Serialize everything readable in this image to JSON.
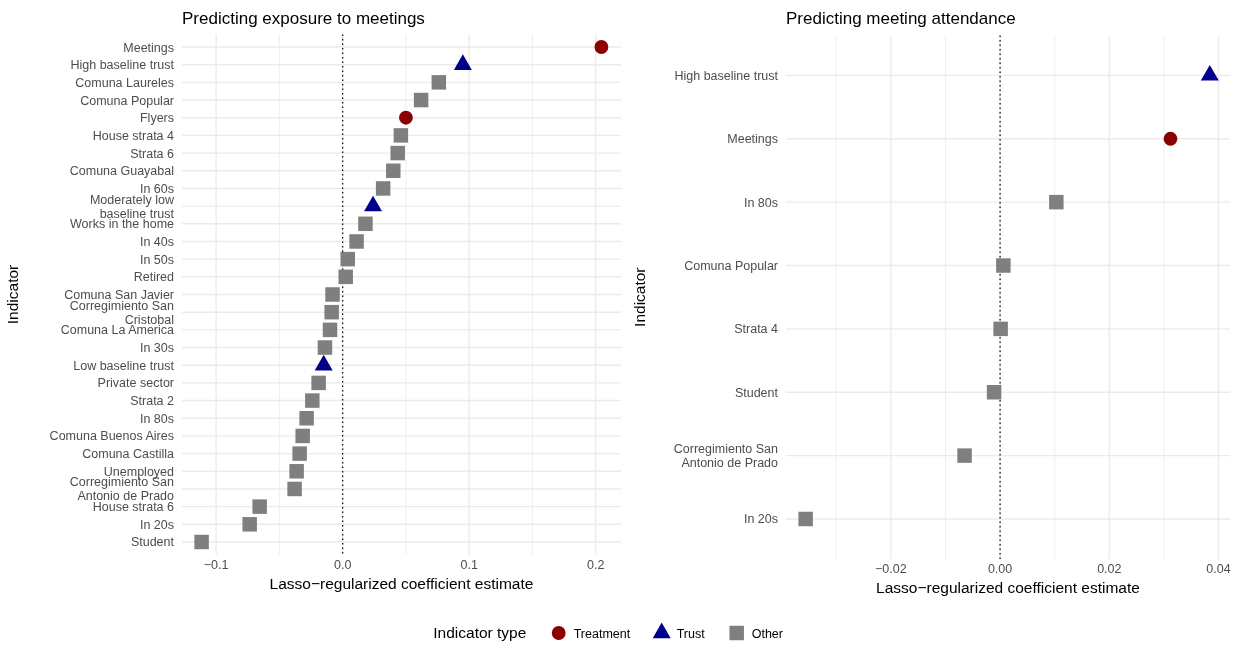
{
  "chart_data": [
    {
      "type": "scatter",
      "title": "Predicting exposure to meetings",
      "xlabel": "Lasso−regularized coefficient estimate",
      "ylabel": "Indicator",
      "orientation": "horizontal",
      "legend": "bottom",
      "legend_title": "Indicator type",
      "grid": true,
      "categories": [
        "Meetings",
        "High baseline trust",
        "Comuna Laureles",
        "Comuna Popular",
        "Flyers",
        "House strata 4",
        "Strata 6",
        "Comuna Guayabal",
        "In 60s",
        "Moderately low baseline trust",
        "Works in the home",
        "In 40s",
        "In 50s",
        "Retired",
        "Comuna San Javier",
        "Corregimiento San Cristobal",
        "Comuna La America",
        "In 30s",
        "Low baseline trust",
        "Private sector",
        "Strata 2",
        "In 80s",
        "Comuna Buenos Aires",
        "Comuna Castilla",
        "Unemployed",
        "Corregimiento San Antonio de Prado",
        "House strata 6",
        "In 20s",
        "Student"
      ],
      "xlim": [
        -0.127,
        0.22
      ],
      "xticks": [
        {
          "value": -0.1,
          "label": "−0.1"
        },
        {
          "value": -0.05,
          "label": null
        },
        {
          "value": 0,
          "label": "0.0"
        },
        {
          "value": 0.05,
          "label": null
        },
        {
          "value": 0.1,
          "label": "0.1"
        },
        {
          "value": 0.15,
          "label": null
        },
        {
          "value": 0.2,
          "label": "0.2"
        }
      ],
      "ref_lines": [
        {
          "axis": "x",
          "value": 0,
          "line_style": "dotted",
          "color": "#000000"
        }
      ],
      "series": [
        {
          "name": "Treatment",
          "color": "#8b0000",
          "marker": "circle",
          "values": [
            0.2045,
            null,
            null,
            null,
            0.05,
            null,
            null,
            null,
            null,
            null,
            null,
            null,
            null,
            null,
            null,
            null,
            null,
            null,
            null,
            null,
            null,
            null,
            null,
            null,
            null,
            null,
            null,
            null,
            null
          ]
        },
        {
          "name": "Trust",
          "color": "#00008b",
          "marker": "triangle",
          "values": [
            null,
            0.095,
            null,
            null,
            null,
            null,
            null,
            null,
            null,
            0.024,
            null,
            null,
            null,
            null,
            null,
            null,
            null,
            null,
            -0.015,
            null,
            null,
            null,
            null,
            null,
            null,
            null,
            null,
            null,
            null
          ]
        },
        {
          "name": "Other",
          "color": "#7f7f7f",
          "marker": "square",
          "values": [
            null,
            null,
            0.076,
            0.062,
            null,
            0.046,
            0.0435,
            0.04,
            0.032,
            null,
            0.018,
            0.011,
            0.004,
            0.0024,
            -0.008,
            -0.0087,
            -0.01,
            -0.014,
            null,
            -0.019,
            -0.024,
            -0.0285,
            -0.0316,
            -0.034,
            -0.0364,
            -0.038,
            -0.0656,
            -0.0735,
            -0.1115
          ]
        }
      ]
    },
    {
      "type": "scatter",
      "title": "Predicting meeting attendance",
      "xlabel": "Lasso−regularized coefficient estimate",
      "ylabel": "Indicator",
      "orientation": "horizontal",
      "grid": true,
      "categories": [
        "High baseline trust",
        "Meetings",
        "In 80s",
        "Comuna Popular",
        "Strata 4",
        "Student",
        "Corregimiento San Antonio de Prado",
        "In 20s"
      ],
      "xlim": [
        -0.0392,
        0.0421
      ],
      "xticks": [
        {
          "value": -0.03,
          "label": null
        },
        {
          "value": -0.02,
          "label": "−0.02"
        },
        {
          "value": -0.01,
          "label": null
        },
        {
          "value": 0,
          "label": "0.00"
        },
        {
          "value": 0.01,
          "label": null
        },
        {
          "value": 0.02,
          "label": "0.02"
        },
        {
          "value": 0.03,
          "label": null
        },
        {
          "value": 0.04,
          "label": "0.04"
        }
      ],
      "ref_lines": [
        {
          "axis": "x",
          "value": 0,
          "line_style": "dotted",
          "color": "#000000"
        }
      ],
      "series": [
        {
          "color": "#8b0000",
          "marker": "circle",
          "values": [
            null,
            0.0312,
            null,
            null,
            null,
            null,
            null,
            null
          ]
        },
        {
          "color": "#00008b",
          "marker": "triangle",
          "values": [
            0.0384,
            null,
            null,
            null,
            null,
            null,
            null,
            null
          ]
        },
        {
          "color": "#7f7f7f",
          "marker": "square",
          "values": [
            null,
            null,
            0.0103,
            0.0006,
            0.0001,
            -0.0011,
            -0.0065,
            -0.0356
          ]
        }
      ]
    }
  ]
}
